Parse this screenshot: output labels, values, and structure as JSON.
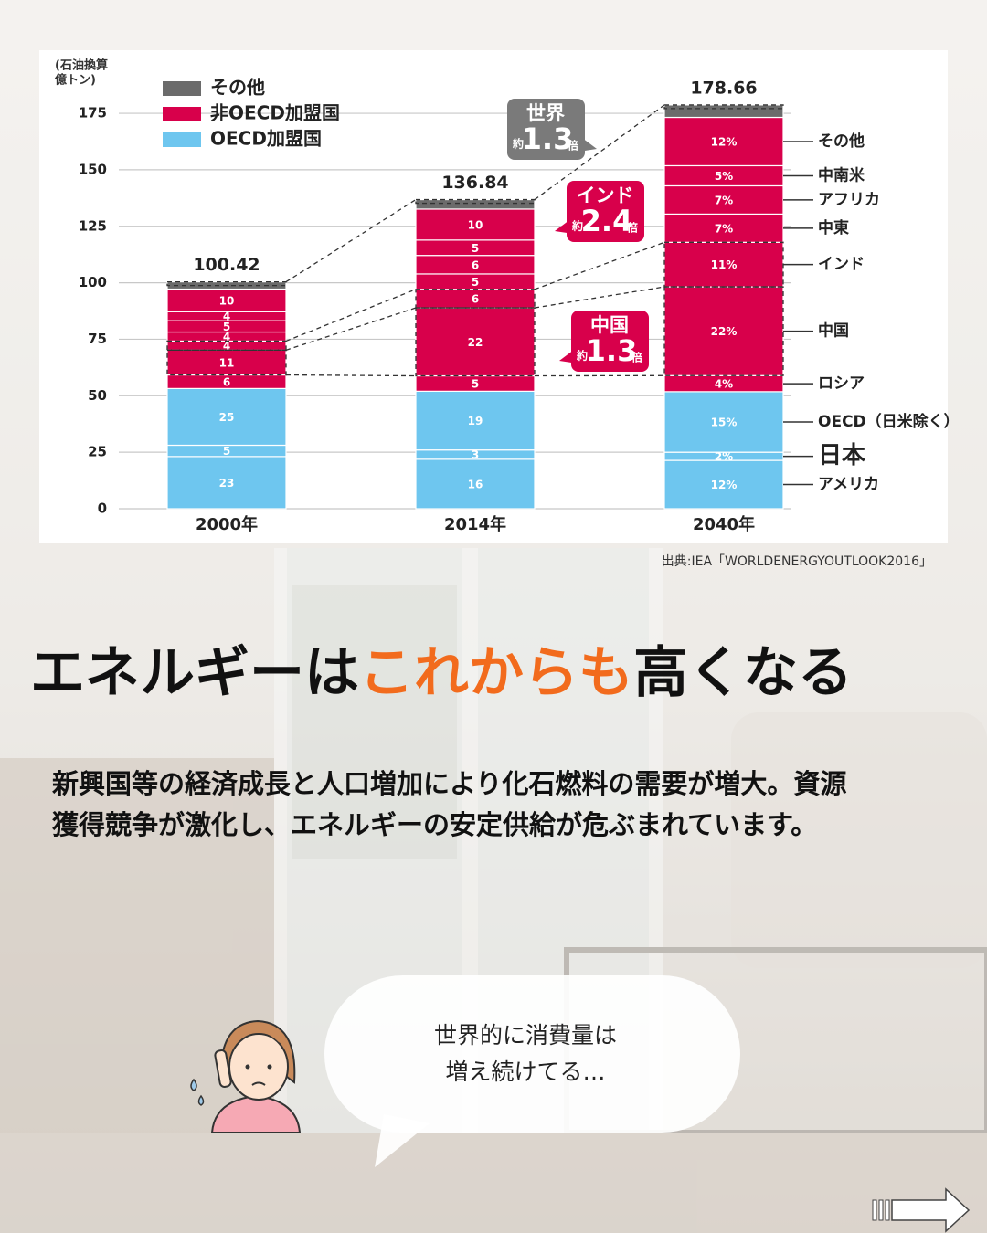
{
  "chart_data": {
    "type": "bar",
    "stacked": true,
    "y_label": [
      "(石油換算",
      "億トン)"
    ],
    "categories": [
      "2000年",
      "2014年",
      "2040年"
    ],
    "totals": [
      100.42,
      136.84,
      178.66
    ],
    "ylim": [
      0,
      180
    ],
    "yticks": [
      0,
      25,
      50,
      75,
      100,
      125,
      150,
      175
    ],
    "grid": true,
    "legend": [
      {
        "name": "その他",
        "color": "#6b6b6b"
      },
      {
        "name": "非OECD加盟国",
        "color": "#d8004b"
      },
      {
        "name": "OECD加盟国",
        "color": "#6ec6ef"
      }
    ],
    "series": [
      {
        "name": "アメリカ",
        "color": "#6ec6ef",
        "values": [
          23.1,
          21.9,
          21.4
        ],
        "value_labels": [
          "23",
          "16",
          "12%"
        ]
      },
      {
        "name": "日本",
        "color": "#6ec6ef",
        "values": [
          5.0,
          4.1,
          3.6
        ],
        "value_labels": [
          "5",
          "3",
          "2%"
        ]
      },
      {
        "name": "OECD（日米除く）",
        "color": "#6ec6ef",
        "values": [
          25.1,
          26.0,
          26.8
        ],
        "value_labels": [
          "25",
          "19",
          "15%"
        ]
      },
      {
        "name": "ロシア",
        "color": "#d8004b",
        "values": [
          6.0,
          6.8,
          7.1
        ],
        "value_labels": [
          "6",
          "5",
          "4%"
        ]
      },
      {
        "name": "中国",
        "color": "#d8004b",
        "values": [
          11.0,
          30.1,
          39.3
        ],
        "value_labels": [
          "11",
          "22",
          "22%"
        ]
      },
      {
        "name": "インド",
        "color": "#d8004b",
        "values": [
          4.0,
          8.2,
          19.7
        ],
        "value_labels": [
          "4",
          "6",
          "11%"
        ]
      },
      {
        "name": "中東",
        "color": "#d8004b",
        "values": [
          4.0,
          6.8,
          12.5
        ],
        "value_labels": [
          "4",
          "5",
          "7%"
        ]
      },
      {
        "name": "アフリカ",
        "color": "#d8004b",
        "values": [
          5.0,
          8.2,
          12.5
        ],
        "value_labels": [
          "5",
          "6",
          "7%"
        ]
      },
      {
        "name": "中南米",
        "color": "#d8004b",
        "values": [
          4.0,
          6.8,
          8.9
        ],
        "value_labels": [
          "4",
          "5",
          "5%"
        ]
      },
      {
        "name": "その他",
        "color": "#d8004b",
        "values": [
          10.0,
          13.7,
          21.4
        ],
        "value_labels": [
          "10",
          "10",
          "12%"
        ]
      },
      {
        "color": "#6b6b6b",
        "values": [
          3.2,
          4.2,
          5.5
        ]
      }
    ],
    "annotations": [
      {
        "title": "世界",
        "prefix": "約",
        "value": 1.3,
        "suffix": "倍",
        "color": "#7a7a7a"
      },
      {
        "title": "インド",
        "prefix": "約",
        "value": 2.4,
        "suffix": "倍",
        "color": "#d8004b"
      },
      {
        "title": "中国",
        "prefix": "約",
        "value": 1.3,
        "suffix": "倍",
        "color": "#d8004b"
      }
    ]
  },
  "source": "出典:IEA「WORLDENERGYOUTLOOK2016」",
  "headline": {
    "before": "エネルギーは",
    "highlight": "これからも",
    "after": "高くなる"
  },
  "body": [
    "新興国等の経済成長と人口増加により化石燃料の需要が増大。資源",
    "獲得競争が激化し、エネルギーの安定供給が危ぶまれています。"
  ],
  "bubble": [
    "世界的に消費量は",
    "増え続けてる…"
  ]
}
